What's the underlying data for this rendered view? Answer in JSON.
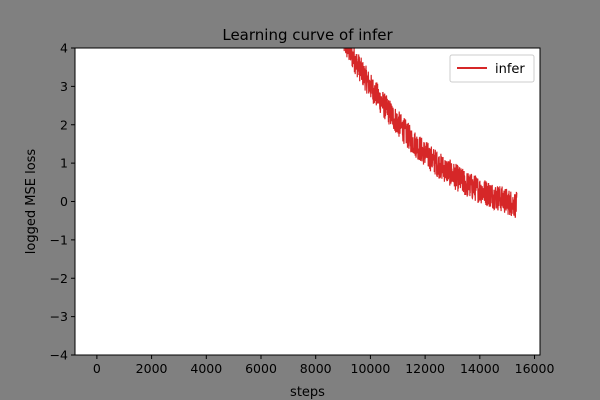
{
  "chart_data": {
    "type": "line",
    "title": "Learning curve of infer",
    "xlabel": "steps",
    "ylabel": "logged MSE loss",
    "xlim": [
      -800,
      16200
    ],
    "ylim": [
      -4,
      4
    ],
    "xticks": [
      0,
      2000,
      4000,
      6000,
      8000,
      10000,
      12000,
      14000,
      16000
    ],
    "yticks": [
      -4,
      -3,
      -2,
      -1,
      0,
      1,
      2,
      3,
      4
    ],
    "xtick_labels": [
      "0",
      "2000",
      "4000",
      "6000",
      "8000",
      "10000",
      "12000",
      "14000",
      "16000"
    ],
    "ytick_labels": [
      "−4",
      "−3",
      "−2",
      "−1",
      "0",
      "1",
      "2",
      "3",
      "4"
    ],
    "legend_position": "top-right",
    "grid": false,
    "series": [
      {
        "name": "infer",
        "color": "#d62728",
        "noise_amplitude": 0.35,
        "x": [
          9000,
          9500,
          10000,
          10500,
          11000,
          11500,
          12000,
          12500,
          13000,
          13500,
          14000,
          14500,
          15000,
          15350
        ],
        "y": [
          4.2,
          3.6,
          3.0,
          2.5,
          2.05,
          1.6,
          1.25,
          0.95,
          0.7,
          0.45,
          0.3,
          0.15,
          0.0,
          -0.1
        ]
      }
    ]
  }
}
